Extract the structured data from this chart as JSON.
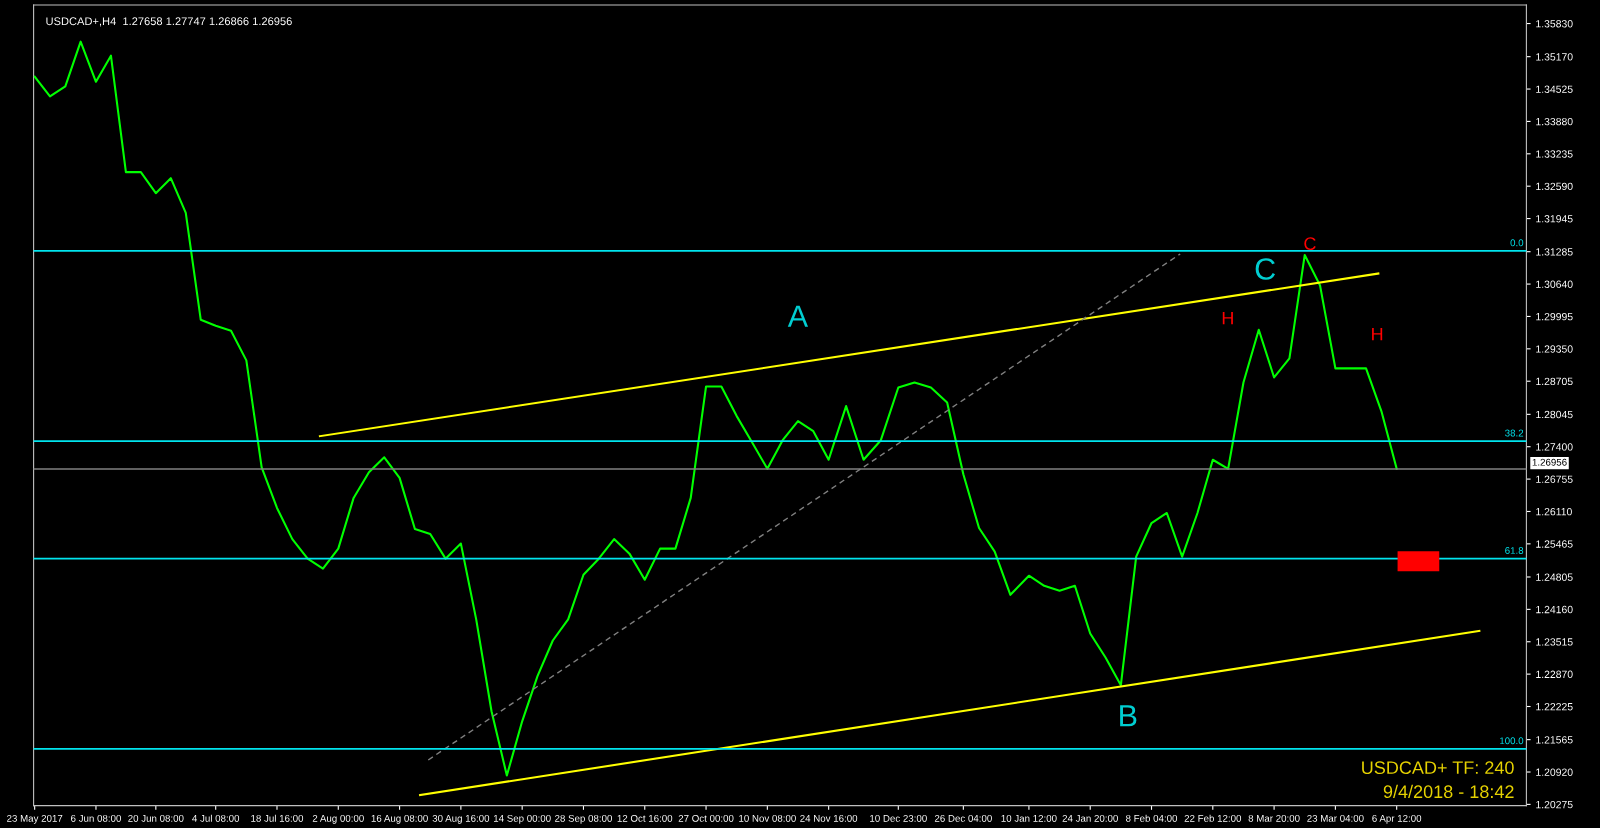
{
  "chart_data": {
    "type": "line",
    "title": "USDCAD+,H4  1.27658 1.27747 1.26866 1.26956",
    "xlim": [
      "2017-05-22T18:00",
      "2018-05-06T20:00"
    ],
    "xticks": [
      {
        "value": "2017-05-23T00:00",
        "label": "23 May 2017"
      },
      {
        "value": "2017-06-06T08:00",
        "label": "6 Jun 08:00"
      },
      {
        "value": "2017-06-20T08:00",
        "label": "20 Jun 08:00"
      },
      {
        "value": "2017-07-04T08:00",
        "label": "4 Jul 08:00"
      },
      {
        "value": "2017-07-18T16:00",
        "label": "18 Jul 16:00"
      },
      {
        "value": "2017-08-02T00:00",
        "label": "2 Aug 00:00"
      },
      {
        "value": "2017-08-16T08:00",
        "label": "16 Aug 08:00"
      },
      {
        "value": "2017-08-30T16:00",
        "label": "30 Aug 16:00"
      },
      {
        "value": "2017-09-14T00:00",
        "label": "14 Sep 00:00"
      },
      {
        "value": "2017-09-28T08:00",
        "label": "28 Sep 08:00"
      },
      {
        "value": "2017-10-12T16:00",
        "label": "12 Oct 16:00"
      },
      {
        "value": "2017-10-27T00:00",
        "label": "27 Oct 00:00"
      },
      {
        "value": "2017-11-10T08:00",
        "label": "10 Nov 08:00"
      },
      {
        "value": "2017-11-24T16:00",
        "label": "24 Nov 16:00"
      },
      {
        "value": "2017-12-10T23:00",
        "label": "10 Dec 23:00"
      },
      {
        "value": "2017-12-26T04:00",
        "label": "26 Dec 04:00"
      },
      {
        "value": "2018-01-10T12:00",
        "label": "10 Jan 12:00"
      },
      {
        "value": "2018-01-24T20:00",
        "label": "24 Jan 20:00"
      },
      {
        "value": "2018-02-08T04:00",
        "label": "8 Feb 04:00"
      },
      {
        "value": "2018-02-22T12:00",
        "label": "22 Feb 12:00"
      },
      {
        "value": "2018-03-08T20:00",
        "label": "8 Mar 20:00"
      },
      {
        "value": "2018-03-23T04:00",
        "label": "23 Mar 04:00"
      },
      {
        "value": "2018-04-06T12:00",
        "label": "6 Apr 12:00"
      }
    ],
    "series": [
      {
        "color": "#00ff00",
        "line_style": "solid",
        "x": [
          "2017-05-23T00:00",
          "2017-05-26T14:00",
          "2017-05-30T04:00",
          "2017-06-02T18:00",
          "2017-06-06T08:00",
          "2017-06-09T20:00",
          "2017-06-13T08:00",
          "2017-06-16T20:00",
          "2017-06-20T08:00",
          "2017-06-23T20:00",
          "2017-06-27T08:00",
          "2017-06-30T20:00",
          "2017-07-04T08:00",
          "2017-07-07T22:00",
          "2017-07-11T12:00",
          "2017-07-15T02:00",
          "2017-07-18T16:00",
          "2017-07-22T06:00",
          "2017-07-25T20:00",
          "2017-07-29T10:00",
          "2017-08-02T00:00",
          "2017-08-05T14:00",
          "2017-08-09T04:00",
          "2017-08-12T18:00",
          "2017-08-16T08:00",
          "2017-08-19T22:00",
          "2017-08-23T12:00",
          "2017-08-27T02:00",
          "2017-08-30T16:00",
          "2017-09-03T06:00",
          "2017-09-06T20:00",
          "2017-09-10T10:00",
          "2017-09-14T00:00",
          "2017-09-17T14:00",
          "2017-09-21T04:00",
          "2017-09-24T18:00",
          "2017-09-28T08:00",
          "2017-10-01T22:00",
          "2017-10-05T12:00",
          "2017-10-09T02:00",
          "2017-10-12T16:00",
          "2017-10-16T06:00",
          "2017-10-19T20:00",
          "2017-10-23T10:00",
          "2017-10-27T00:00",
          "2017-10-30T14:00",
          "2017-11-03T04:00",
          "2017-11-06T18:00",
          "2017-11-10T08:00",
          "2017-11-13T22:00",
          "2017-11-17T12:00",
          "2017-11-21T02:00",
          "2017-11-24T16:00",
          "2017-11-28T18:00",
          "2017-12-02T20:00",
          "2017-12-06T21:00",
          "2017-12-10T23:00",
          "2017-12-14T18:00",
          "2017-12-18T14:00",
          "2017-12-22T09:00",
          "2017-12-26T04:00",
          "2017-12-29T20:00",
          "2018-01-02T12:00",
          "2018-01-06T04:00",
          "2018-01-10T12:00",
          "2018-01-14T02:00",
          "2018-01-17T16:00",
          "2018-01-21T06:00",
          "2018-01-24T20:00",
          "2018-01-28T10:00",
          "2018-02-01T00:00",
          "2018-02-04T14:00",
          "2018-02-08T04:00",
          "2018-02-11T18:00",
          "2018-02-15T08:00",
          "2018-02-18T22:00",
          "2018-02-22T12:00",
          "2018-02-26T02:00",
          "2018-03-01T16:00",
          "2018-03-05T06:00",
          "2018-03-08T20:00",
          "2018-03-12T10:00",
          "2018-03-16T00:00",
          "2018-03-19T14:00",
          "2018-03-23T04:00",
          "2018-03-26T18:00",
          "2018-03-30T08:00",
          "2018-04-02T22:00",
          "2018-04-06T12:00"
        ],
        "values": [
          1.3477,
          1.3438,
          1.3458,
          1.3547,
          1.3467,
          1.3519,
          1.3287,
          1.3287,
          1.3245,
          1.3275,
          1.3206,
          1.2993,
          1.2981,
          1.2971,
          1.2912,
          1.2699,
          1.2618,
          1.2556,
          1.2517,
          1.2497,
          1.2537,
          1.2638,
          1.2689,
          1.2719,
          1.2678,
          1.2576,
          1.2566,
          1.2517,
          1.2547,
          1.2396,
          1.2213,
          1.2085,
          1.2193,
          1.2283,
          1.2354,
          1.2396,
          1.2485,
          1.2517,
          1.2556,
          1.2527,
          1.2475,
          1.2537,
          1.2537,
          1.2638,
          1.286,
          1.286,
          1.2801,
          1.2749,
          1.2696,
          1.2753,
          1.2791,
          1.2771,
          1.2714,
          1.2821,
          1.2714,
          1.2753,
          1.2858,
          1.2868,
          1.2858,
          1.2828,
          1.2685,
          1.2578,
          1.2531,
          1.2445,
          1.2483,
          1.2463,
          1.2453,
          1.2463,
          1.2368,
          1.232,
          1.2265,
          1.2521,
          1.2588,
          1.2608,
          1.2521,
          1.2608,
          1.2714,
          1.2696,
          1.2868,
          1.2973,
          1.2878,
          1.2916,
          1.3122,
          1.3061,
          1.2896,
          1.2896,
          1.2896,
          1.2811,
          1.2696
        ]
      },
      {
        "color": "#ffff00",
        "line_style": "solid",
        "x": [
          "2017-07-28T17:00",
          "2018-04-02T05:00"
        ],
        "values": [
          1.2761,
          1.3085
        ]
      },
      {
        "color": "#ffff00",
        "line_style": "solid",
        "x": [
          "2017-08-21T03:00",
          "2018-04-25T20:00"
        ],
        "values": [
          1.2046,
          1.2373
        ]
      },
      {
        "color": "#808080",
        "line_style": "dashed",
        "x": [
          "2017-08-23T01:00",
          "2018-02-14T21:00"
        ],
        "values": [
          1.2116,
          1.3124
        ]
      },
      {
        "type": "bar",
        "color": "#ff0000",
        "x": [
          "2018-04-11T14:00"
        ],
        "base": [
          1.2492
        ],
        "values": [
          0.004
        ]
      }
    ],
    "ylim": [
      1.2025,
      1.362
    ],
    "yticks": [
      {
        "value": 1.3583,
        "label": "1.35830"
      },
      {
        "value": 1.3517,
        "label": "1.35170"
      },
      {
        "value": 1.34525,
        "label": "1.34525"
      },
      {
        "value": 1.3388,
        "label": "1.33880"
      },
      {
        "value": 1.33235,
        "label": "1.33235"
      },
      {
        "value": 1.3259,
        "label": "1.32590"
      },
      {
        "value": 1.31945,
        "label": "1.31945"
      },
      {
        "value": 1.31285,
        "label": "1.31285"
      },
      {
        "value": 1.3064,
        "label": "1.30640"
      },
      {
        "value": 1.29995,
        "label": "1.29995"
      },
      {
        "value": 1.2935,
        "label": "1.29350"
      },
      {
        "value": 1.28705,
        "label": "1.28705"
      },
      {
        "value": 1.28045,
        "label": "1.28045"
      },
      {
        "value": 1.274,
        "label": "1.27400"
      },
      {
        "value": 1.26755,
        "label": "1.26755"
      },
      {
        "value": 1.2611,
        "label": "1.26110"
      },
      {
        "value": 1.25465,
        "label": "1.25465"
      },
      {
        "value": 1.24805,
        "label": "1.24805"
      },
      {
        "value": 1.2416,
        "label": "1.24160"
      },
      {
        "value": 1.23515,
        "label": "1.23515"
      },
      {
        "value": 1.2287,
        "label": "1.22870"
      },
      {
        "value": 1.22225,
        "label": "1.22225"
      },
      {
        "value": 1.21565,
        "label": "1.21565"
      },
      {
        "value": 1.2092,
        "label": "1.20920"
      },
      {
        "value": 1.20275,
        "label": "1.20275"
      }
    ],
    "ref_lines": [
      {
        "axis": "y",
        "value": 1.313,
        "color": "#00e5ee"
      },
      {
        "axis": "y",
        "value": 1.2751,
        "color": "#00e5ee"
      },
      {
        "axis": "y",
        "value": 1.2517,
        "color": "#00e5ee"
      },
      {
        "axis": "y",
        "value": 1.2138,
        "color": "#00e5ee"
      },
      {
        "axis": "y",
        "value": 1.26956,
        "label": "1.26956",
        "color": "#808080"
      }
    ],
    "annotations": [
      {
        "text": "0.0",
        "y": 1.313
      },
      {
        "text": "38.2",
        "y": 1.2751
      },
      {
        "text": "61.8",
        "y": 1.2517
      },
      {
        "text": "100.0",
        "y": 1.2138
      },
      "A",
      "B",
      "C",
      "C",
      "H",
      "H",
      "USDCAD+ TF: 240",
      "9/4/2018 - 18:42"
    ],
    "grid": false,
    "legend": false,
    "marker": "none"
  }
}
